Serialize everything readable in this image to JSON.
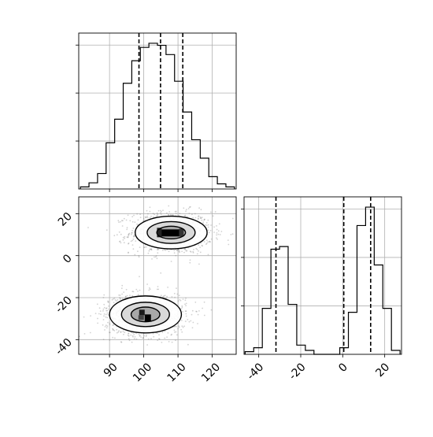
{
  "chart_data": [
    {
      "type": "histogram",
      "panel": "marginal-x",
      "xlim": [
        81,
        127
      ],
      "bins": [
        81.5,
        84,
        86.5,
        89,
        91.5,
        94,
        96.5,
        99,
        101.5,
        104,
        106.5,
        109,
        111.5,
        114,
        116.5,
        119,
        121.5,
        124,
        126.5
      ],
      "counts": [
        0.02,
        0.06,
        0.15,
        0.45,
        0.68,
        1.03,
        1.25,
        1.38,
        1.42,
        1.4,
        1.31,
        1.05,
        0.75,
        0.48,
        0.3,
        0.12,
        0.05,
        0.02
      ],
      "quantile_lines": [
        98.6,
        104.9,
        111.4
      ],
      "grid": true,
      "yticks_labeled": false
    },
    {
      "type": "histogram",
      "panel": "marginal-y",
      "xlim": [
        -47,
        28
      ],
      "bins": [
        -46.5,
        -42.4,
        -38.3,
        -34.2,
        -30.1,
        -26,
        -21.9,
        -17.8,
        -13.7,
        -9.6,
        -5.5,
        -1.4,
        2.7,
        6.8,
        10.9,
        15,
        19.1,
        23.2,
        27.3
      ],
      "counts": [
        0.02,
        0.05,
        0.35,
        0.8,
        0.82,
        0.38,
        0.07,
        0.03,
        0.0,
        0.0,
        0.0,
        0.05,
        0.32,
        0.98,
        1.12,
        0.68,
        0.35,
        0.03
      ],
      "quantile_lines": [
        -31.8,
        0.5,
        13.3
      ],
      "xticks": [
        -40,
        -20,
        0,
        20
      ],
      "grid": true,
      "yticks_labeled": false
    },
    {
      "type": "scatter-density",
      "panel": "joint",
      "xlim": [
        81,
        127
      ],
      "ylim": [
        -47,
        28
      ],
      "xticks": [
        90,
        100,
        110,
        120
      ],
      "yticks": [
        -40,
        -20,
        0,
        20
      ],
      "clusters": [
        {
          "center": [
            108,
            11
          ],
          "spread": [
            6,
            5
          ],
          "contour_radii": [
            [
              10.5,
              7.8
            ],
            [
              7.0,
              5.2
            ],
            [
              4.2,
              3.0
            ]
          ]
        },
        {
          "center": [
            100.5,
            -28
          ],
          "spread": [
            6,
            5
          ],
          "contour_radii": [
            [
              10.5,
              8.8
            ],
            [
              7.0,
              5.8
            ],
            [
              4.2,
              3.5
            ]
          ]
        }
      ],
      "grid": true
    }
  ]
}
